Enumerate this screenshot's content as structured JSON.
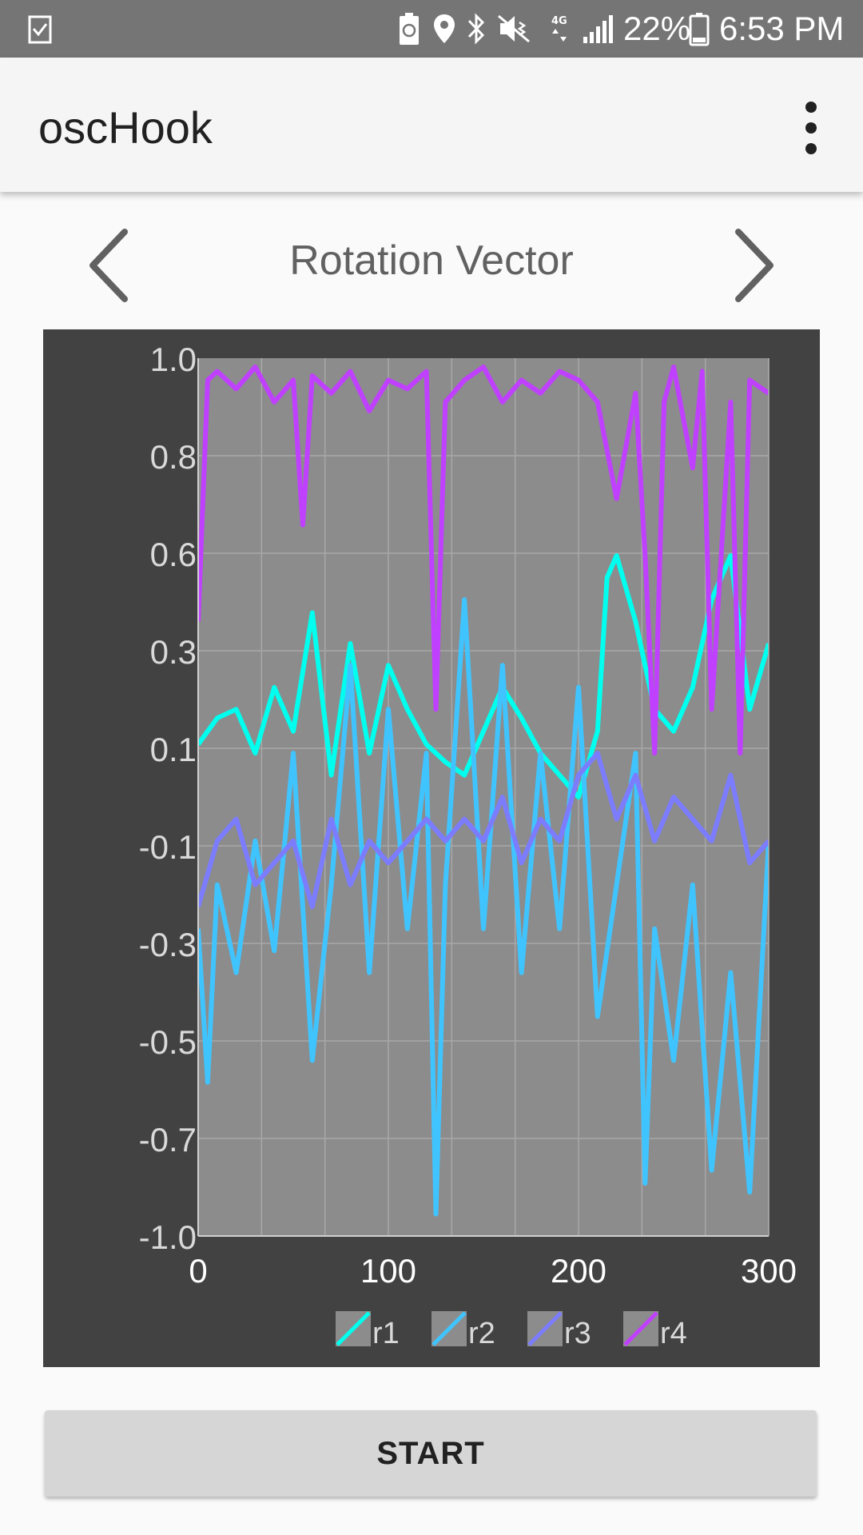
{
  "status_bar": {
    "battery_percent_text": "22%",
    "time": "6:53 PM",
    "network_label": "4G",
    "icons": [
      "clipboard-check-icon",
      "recycle-battery-icon",
      "location-pin-icon",
      "bluetooth-icon",
      "mute-vibrate-icon",
      "4g-lte-icon",
      "signal-icon",
      "battery-icon"
    ]
  },
  "app_bar": {
    "title": "oscHook",
    "menu_icon": "overflow-menu-icon"
  },
  "navigation": {
    "title": "Rotation Vector",
    "prev_icon": "chevron-left-icon",
    "next_icon": "chevron-right-icon"
  },
  "chart_data": {
    "type": "line",
    "xlim": [
      0,
      300
    ],
    "ylim": [
      -1.0,
      1.0
    ],
    "x_ticks": [
      "0",
      "100",
      "200",
      "300"
    ],
    "y_ticks": [
      "1.0",
      "0.8",
      "0.6",
      "0.3",
      "0.1",
      "-0.1",
      "-0.3",
      "-0.5",
      "-0.7",
      "-1.0"
    ],
    "grid": true,
    "legend_position": "bottom",
    "background": "#8c8c8c",
    "series": [
      {
        "name": "r1",
        "color": "#00ffee",
        "points": [
          [
            0,
            0.12
          ],
          [
            10,
            0.18
          ],
          [
            20,
            0.2
          ],
          [
            30,
            0.1
          ],
          [
            40,
            0.25
          ],
          [
            50,
            0.15
          ],
          [
            60,
            0.42
          ],
          [
            70,
            0.05
          ],
          [
            80,
            0.35
          ],
          [
            90,
            0.1
          ],
          [
            100,
            0.3
          ],
          [
            110,
            0.2
          ],
          [
            120,
            0.12
          ],
          [
            130,
            0.08
          ],
          [
            140,
            0.05
          ],
          [
            150,
            0.15
          ],
          [
            160,
            0.25
          ],
          [
            170,
            0.18
          ],
          [
            180,
            0.1
          ],
          [
            190,
            0.05
          ],
          [
            200,
            0.0
          ],
          [
            210,
            0.15
          ],
          [
            215,
            0.5
          ],
          [
            220,
            0.55
          ],
          [
            230,
            0.4
          ],
          [
            240,
            0.2
          ],
          [
            250,
            0.15
          ],
          [
            260,
            0.25
          ],
          [
            270,
            0.45
          ],
          [
            280,
            0.55
          ],
          [
            290,
            0.2
          ],
          [
            300,
            0.35
          ]
        ]
      },
      {
        "name": "r2",
        "color": "#40c4ff",
        "points": [
          [
            0,
            -0.3
          ],
          [
            5,
            -0.65
          ],
          [
            10,
            -0.2
          ],
          [
            20,
            -0.4
          ],
          [
            30,
            -0.1
          ],
          [
            40,
            -0.35
          ],
          [
            50,
            0.1
          ],
          [
            60,
            -0.6
          ],
          [
            70,
            -0.2
          ],
          [
            80,
            0.3
          ],
          [
            90,
            -0.4
          ],
          [
            100,
            0.2
          ],
          [
            110,
            -0.3
          ],
          [
            120,
            0.1
          ],
          [
            125,
            -0.95
          ],
          [
            130,
            -0.2
          ],
          [
            140,
            0.45
          ],
          [
            150,
            -0.3
          ],
          [
            160,
            0.3
          ],
          [
            170,
            -0.4
          ],
          [
            180,
            0.1
          ],
          [
            190,
            -0.3
          ],
          [
            200,
            0.25
          ],
          [
            210,
            -0.5
          ],
          [
            220,
            -0.2
          ],
          [
            230,
            0.1
          ],
          [
            235,
            -0.88
          ],
          [
            240,
            -0.3
          ],
          [
            250,
            -0.6
          ],
          [
            260,
            -0.2
          ],
          [
            270,
            -0.85
          ],
          [
            280,
            -0.4
          ],
          [
            290,
            -0.9
          ],
          [
            300,
            -0.1
          ]
        ]
      },
      {
        "name": "r3",
        "color": "#7c7cff",
        "points": [
          [
            0,
            -0.25
          ],
          [
            10,
            -0.1
          ],
          [
            20,
            -0.05
          ],
          [
            30,
            -0.2
          ],
          [
            40,
            -0.15
          ],
          [
            50,
            -0.1
          ],
          [
            60,
            -0.25
          ],
          [
            70,
            -0.05
          ],
          [
            80,
            -0.2
          ],
          [
            90,
            -0.1
          ],
          [
            100,
            -0.15
          ],
          [
            110,
            -0.1
          ],
          [
            120,
            -0.05
          ],
          [
            130,
            -0.1
          ],
          [
            140,
            -0.05
          ],
          [
            150,
            -0.1
          ],
          [
            160,
            0.0
          ],
          [
            170,
            -0.15
          ],
          [
            180,
            -0.05
          ],
          [
            190,
            -0.1
          ],
          [
            200,
            0.05
          ],
          [
            210,
            0.1
          ],
          [
            220,
            -0.05
          ],
          [
            230,
            0.05
          ],
          [
            240,
            -0.1
          ],
          [
            250,
            0.0
          ],
          [
            260,
            -0.05
          ],
          [
            270,
            -0.1
          ],
          [
            280,
            0.05
          ],
          [
            290,
            -0.15
          ],
          [
            300,
            -0.1
          ]
        ]
      },
      {
        "name": "r4",
        "color": "#c040ff",
        "points": [
          [
            0,
            0.4
          ],
          [
            5,
            0.95
          ],
          [
            10,
            0.97
          ],
          [
            20,
            0.93
          ],
          [
            30,
            0.98
          ],
          [
            40,
            0.9
          ],
          [
            50,
            0.95
          ],
          [
            55,
            0.62
          ],
          [
            60,
            0.96
          ],
          [
            70,
            0.92
          ],
          [
            80,
            0.97
          ],
          [
            90,
            0.88
          ],
          [
            100,
            0.95
          ],
          [
            110,
            0.93
          ],
          [
            120,
            0.97
          ],
          [
            125,
            0.2
          ],
          [
            130,
            0.9
          ],
          [
            140,
            0.95
          ],
          [
            150,
            0.98
          ],
          [
            160,
            0.9
          ],
          [
            170,
            0.95
          ],
          [
            180,
            0.92
          ],
          [
            190,
            0.97
          ],
          [
            200,
            0.95
          ],
          [
            210,
            0.9
          ],
          [
            220,
            0.68
          ],
          [
            230,
            0.92
          ],
          [
            235,
            0.55
          ],
          [
            240,
            0.1
          ],
          [
            245,
            0.9
          ],
          [
            250,
            0.98
          ],
          [
            260,
            0.75
          ],
          [
            265,
            0.97
          ],
          [
            270,
            0.2
          ],
          [
            280,
            0.9
          ],
          [
            285,
            0.1
          ],
          [
            290,
            0.95
          ],
          [
            300,
            0.92
          ]
        ]
      }
    ]
  },
  "start_button": {
    "label": "START"
  }
}
